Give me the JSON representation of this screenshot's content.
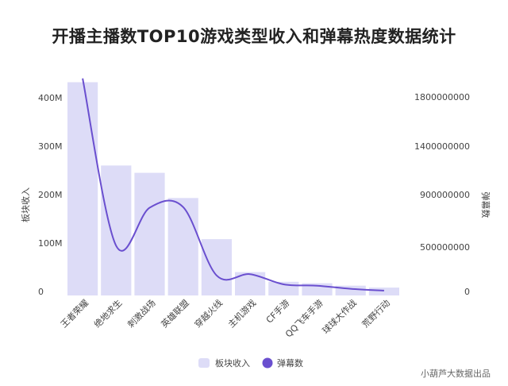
{
  "title": "开播主播数TOP10游戏类型收入和弹幕热度数据统计",
  "source": "小葫芦大数据出品",
  "colors": {
    "bar": "#dddcf7",
    "line": "#6a4fcf",
    "text": "#444444"
  },
  "chart_data": {
    "type": "bar",
    "title": "开播主播数TOP10游戏类型收入和弹幕热度数据统计",
    "categories": [
      "王者荣耀",
      "绝地求生",
      "刺激战场",
      "英雄联盟",
      "穿越火线",
      "主机游戏",
      "CF手游",
      "QQ飞车手游",
      "球球大作战",
      "荒野行动"
    ],
    "ylabel": "板块收入",
    "y2label": "弹幕数",
    "yticks": [
      "0",
      "100M",
      "200M",
      "300M",
      "400M"
    ],
    "ylim": [
      0,
      450000000
    ],
    "y2ticks": [
      "0",
      "500000000",
      "900000000",
      "1400000000",
      "1800000000"
    ],
    "y2lim": [
      0,
      2000000000
    ],
    "grid": false,
    "legend_position": "bottom",
    "series": [
      {
        "name": "板块收入",
        "type": "bar",
        "axis": "left",
        "values": [
          432000000,
          260000000,
          245000000,
          193000000,
          108000000,
          40000000,
          20000000,
          17000000,
          12000000,
          8000000
        ]
      },
      {
        "name": "弹幕数",
        "type": "line",
        "axis": "right",
        "smooth": true,
        "values": [
          1950000000,
          510000000,
          800000000,
          805000000,
          180000000,
          195000000,
          80000000,
          65000000,
          30000000,
          10000000
        ]
      }
    ]
  }
}
